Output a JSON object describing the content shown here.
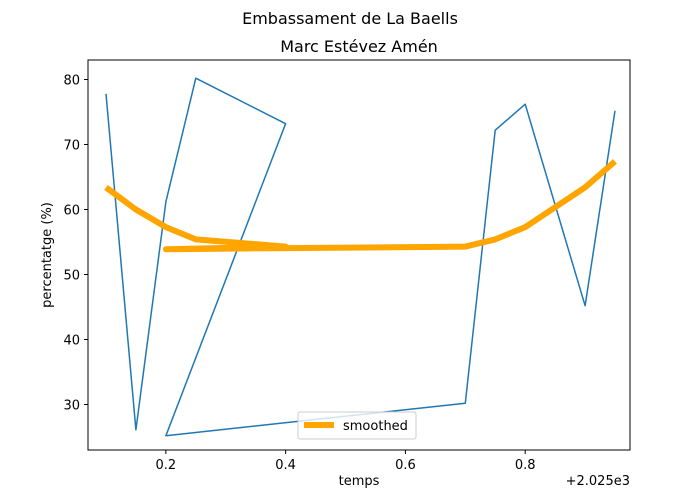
{
  "chart_data": {
    "type": "line",
    "title": "Embassament de La Baells",
    "subtitle": "Marc Estévez Amén",
    "xlabel": "temps",
    "ylabel": "percentatge (%)",
    "x_offset_label": "+2.025e3",
    "xlim": [
      0.07,
      0.975
    ],
    "ylim": [
      23.0,
      83.0
    ],
    "x_ticks": [
      0.2,
      0.4,
      0.6,
      0.8
    ],
    "x_tick_labels": [
      "0.2",
      "0.4",
      "0.6",
      "0.8"
    ],
    "y_ticks": [
      30,
      40,
      50,
      60,
      70,
      80
    ],
    "y_tick_labels": [
      "30",
      "40",
      "50",
      "60",
      "70",
      "80"
    ],
    "grid": false,
    "legend_position": "lower center",
    "series": [
      {
        "color": "#1f77b4",
        "x": [
          0.1,
          0.15,
          0.2,
          0.25,
          0.4,
          0.2,
          0.7,
          0.75,
          0.8,
          0.9,
          0.95
        ],
        "y": [
          77.8,
          26.1,
          61.2,
          80.2,
          73.2,
          25.2,
          30.2,
          72.2,
          76.2,
          45.2,
          75.2
        ]
      },
      {
        "name": "smoothed",
        "color": "#ffa500",
        "x": [
          0.1,
          0.15,
          0.2,
          0.25,
          0.4,
          0.2,
          0.7,
          0.75,
          0.8,
          0.9,
          0.95
        ],
        "y": [
          63.4,
          60.0,
          57.3,
          55.4,
          54.3,
          53.9,
          54.3,
          55.4,
          57.3,
          63.4,
          67.4
        ]
      }
    ]
  }
}
